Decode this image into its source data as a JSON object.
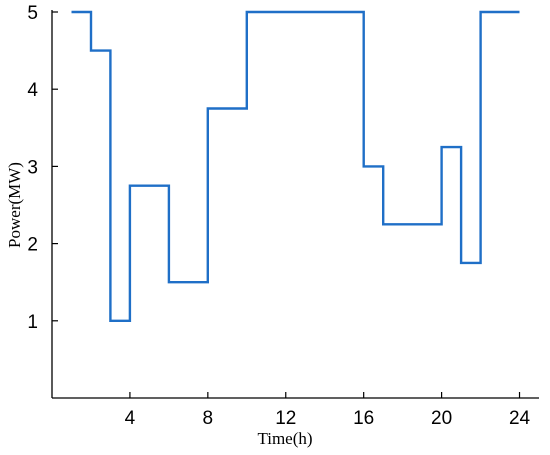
{
  "chart_data": {
    "type": "line",
    "step": true,
    "title": "",
    "xlabel": "Time(h)",
    "ylabel": "Power(MW)",
    "xlim": [
      0,
      25
    ],
    "ylim": [
      0,
      5
    ],
    "xticks": [
      4,
      8,
      12,
      16,
      20,
      24
    ],
    "yticks": [
      1,
      2,
      3,
      4,
      5
    ],
    "grid": false,
    "color": "#1f6fc7",
    "series": [
      {
        "x": [
          1,
          2,
          2,
          3,
          3,
          4,
          4,
          6,
          6,
          8,
          8,
          10,
          10,
          16,
          16,
          17,
          17,
          20,
          20,
          21,
          21,
          22,
          22,
          24
        ],
        "y": [
          5,
          5,
          4.5,
          4.5,
          1,
          1,
          2.75,
          2.75,
          1.5,
          1.5,
          3.75,
          3.75,
          5,
          5,
          3,
          3,
          2.25,
          2.25,
          3.25,
          3.25,
          1.75,
          1.75,
          5,
          5
        ]
      }
    ]
  }
}
